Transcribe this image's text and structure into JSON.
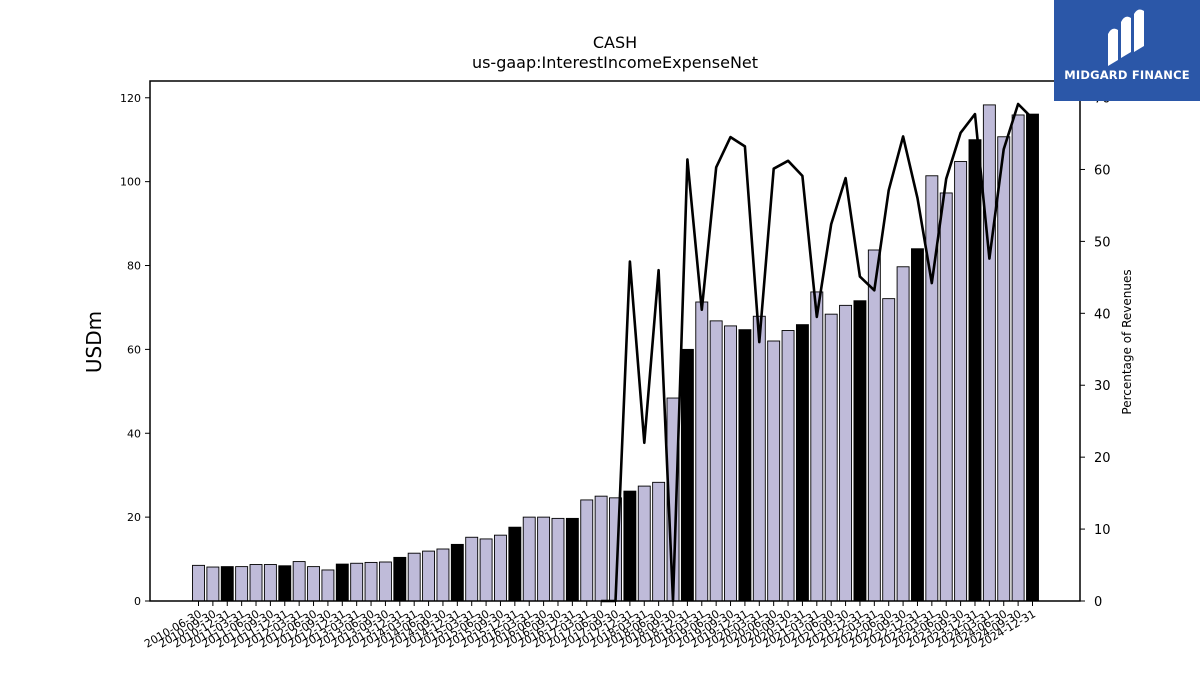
{
  "chart_data": {
    "type": "bar+line",
    "title": "CASH",
    "subtitle": "us-gaap:InterestIncomeExpenseNet",
    "ylabel": "USDm",
    "ylabel_right": "Percentage of Revenues",
    "ylim": [
      0,
      124
    ],
    "ylim_right": [
      0,
      72.3
    ],
    "yticks": [
      0,
      20,
      40,
      60,
      80,
      100,
      120
    ],
    "yticks_right": [
      0,
      10,
      20,
      30,
      40,
      50,
      60,
      70
    ],
    "grid": false,
    "colors": {
      "quarter_bar": "#bfbbd9",
      "annual_bar": "#000000",
      "line": "#000000"
    },
    "categories": [
      "2010-06-30",
      "2010-09-30",
      "2010-12-31",
      "2011-03-31",
      "2011-06-30",
      "2011-09-30",
      "2011-12-31",
      "2012-03-31",
      "2012-06-30",
      "2012-09-30",
      "2012-12-31",
      "2013-03-31",
      "2013-06-30",
      "2013-09-30",
      "2013-12-31",
      "2014-03-31",
      "2014-06-30",
      "2014-09-30",
      "2014-12-31",
      "2015-03-31",
      "2015-06-30",
      "2015-09-30",
      "2015-12-31",
      "2016-03-31",
      "2016-06-30",
      "2016-09-30",
      "2016-12-31",
      "2017-03-31",
      "2017-06-30",
      "2017-09-30",
      "2017-12-31",
      "2018-03-31",
      "2018-06-30",
      "2018-09-30",
      "2018-12-31",
      "2019-03-31",
      "2019-06-30",
      "2019-09-30",
      "2019-12-31",
      "2020-03-31",
      "2020-06-30",
      "2020-09-30",
      "2020-12-31",
      "2021-03-31",
      "2021-06-30",
      "2021-09-30",
      "2021-12-31",
      "2022-03-31",
      "2022-06-30",
      "2022-09-30",
      "2022-12-31",
      "2023-03-31",
      "2023-06-30",
      "2023-09-30",
      "2023-12-31",
      "2024-03-31",
      "2024-06-30",
      "2024-09-30",
      "2024-12-31"
    ],
    "series": [
      {
        "kind": "bar",
        "values": [
          8.5,
          8.1,
          8.2,
          8.2,
          8.7,
          8.7,
          8.4,
          9.4,
          8.2,
          7.4,
          8.8,
          9.0,
          9.2,
          9.3,
          10.4,
          11.4,
          11.9,
          12.4,
          13.5,
          15.2,
          14.8,
          15.7,
          17.6,
          20.0,
          20.0,
          19.7,
          19.7,
          24.1,
          25.0,
          24.6,
          26.2,
          27.4,
          28.3,
          48.4,
          60.0,
          71.3,
          66.8,
          65.6,
          64.7,
          67.9,
          62.0,
          64.5,
          65.9,
          73.7,
          68.4,
          70.5,
          71.6,
          83.7,
          72.1,
          79.7,
          84.0,
          101.4,
          97.3,
          104.8,
          110.0,
          118.3,
          110.7,
          115.9,
          116.1
        ],
        "annual": [
          false,
          false,
          true,
          false,
          false,
          false,
          true,
          false,
          false,
          false,
          true,
          false,
          false,
          false,
          true,
          false,
          false,
          false,
          true,
          false,
          false,
          false,
          true,
          false,
          false,
          false,
          true,
          false,
          false,
          false,
          true,
          false,
          false,
          false,
          true,
          false,
          false,
          false,
          true,
          false,
          false,
          false,
          true,
          false,
          false,
          false,
          true,
          false,
          false,
          false,
          true,
          false,
          false,
          false,
          true,
          false,
          false,
          false,
          true
        ]
      },
      {
        "kind": "line",
        "axis": "right",
        "values": [
          null,
          null,
          null,
          null,
          null,
          null,
          null,
          null,
          null,
          null,
          null,
          null,
          null,
          null,
          null,
          null,
          null,
          null,
          null,
          null,
          null,
          null,
          null,
          null,
          null,
          null,
          null,
          null,
          0,
          0,
          47.2,
          22.0,
          46.0,
          0,
          61.4,
          40.5,
          60.3,
          64.5,
          63.2,
          36.0,
          60.1,
          61.2,
          59.1,
          39.5,
          52.4,
          58.8,
          45.1,
          43.2,
          57.1,
          64.6,
          56.0,
          44.2,
          58.7,
          65.1,
          67.7,
          47.6,
          62.8,
          69.1,
          67.1
        ]
      }
    ]
  },
  "brand": {
    "name": "MIDGARD FINANCE",
    "icon": "midgard-logo-icon",
    "bg": "#2b57a8"
  }
}
